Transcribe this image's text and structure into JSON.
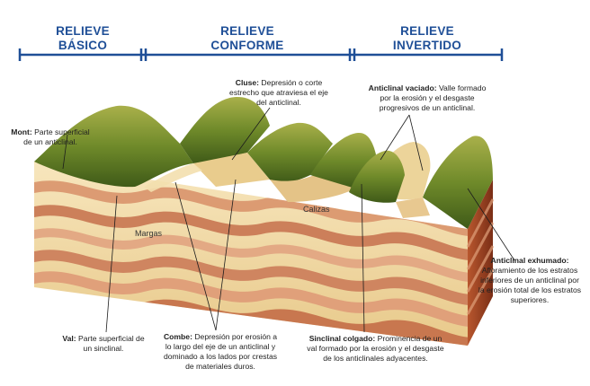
{
  "headers": {
    "basico": [
      "RELIEVE",
      "BÁSICO"
    ],
    "conforme": [
      "RELIEVE",
      "CONFORME"
    ],
    "invertido": [
      "RELIEVE",
      "INVERTIDO"
    ]
  },
  "labels": {
    "margas": "Margas",
    "calizas": "Calizas"
  },
  "annotations": {
    "cluse": {
      "title": "Cluse:",
      "text": "Depresión o corte estrecho que atraviesa el eje del anticlinal."
    },
    "anticlinal_vaciado": {
      "title": "Anticlinal vaciado:",
      "text": "Valle formado por la erosión y el desgaste progresivos de un anticlinal."
    },
    "mont": {
      "title": "Mont:",
      "text": "Parte superficial de un anticlinal."
    },
    "val": {
      "title": "Val:",
      "text": "Parte superficial de un sinclinal."
    },
    "combe": {
      "title": "Combe:",
      "text": "Depresión por erosión a lo largo del eje de un anticlinal y dominado a los lados por crestas de materiales duros."
    },
    "sinclinal_colgado": {
      "title": "Sinclinal colgado:",
      "text": "Prominencia de un val formado por la erosión y el desgaste de los anticlinales adyacentes."
    },
    "anticlinal_exhumado": {
      "title": "Anticlinal exhumado:",
      "text": "Afloramiento de los estratos inferiores de un anticlinal por la erosión total de los estratos superiores."
    }
  },
  "colors": {
    "header_blue": "#1f4f97",
    "grass_dark": "#4f6b1f",
    "grass_light": "#9aa640",
    "rock_cream": "#f2d9a6",
    "rock_band": "#d99a78"
  }
}
